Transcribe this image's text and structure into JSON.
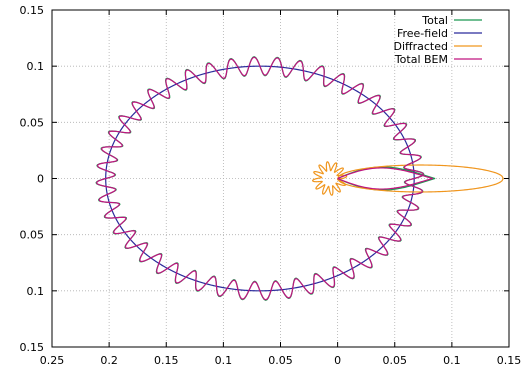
{
  "chart_data": {
    "type": "line",
    "subtype": "polar-directivity",
    "title": "",
    "xlabel": "",
    "ylabel": "",
    "xlim": [
      -0.25,
      0.15
    ],
    "ylim": [
      -0.15,
      0.15
    ],
    "x_ticks": [
      -0.25,
      -0.2,
      -0.15,
      -0.1,
      -0.05,
      0,
      0.05,
      0.1,
      0.15
    ],
    "x_tick_labels": [
      "0.25",
      "0.2",
      "0.15",
      "0.1",
      "0.05",
      "0",
      "0.05",
      "0.1",
      "0.15"
    ],
    "y_ticks": [
      0.15,
      0.1,
      0.05,
      0,
      -0.05,
      -0.1,
      -0.15
    ],
    "y_tick_labels": [
      "0.15",
      "0.1",
      "0.05",
      "0",
      "0.05",
      "0.1",
      "0.15"
    ],
    "grid": true,
    "legend_position": "top-right",
    "series": [
      {
        "name": "Total",
        "color": "#1a9850",
        "description": "base ellipse with ripples, slightly larger amplitude",
        "cx": -0.068,
        "rx": 0.135,
        "ry": 0.1,
        "ripple_amplitude": 0.0085,
        "ripple_count": 44,
        "lobe": {
          "tip_x": 0.085,
          "width": 0.012
        }
      },
      {
        "name": "Free-field",
        "color": "#2b2b9c",
        "description": "smooth ellipse",
        "cx": -0.068,
        "rx": 0.135,
        "ry": 0.1
      },
      {
        "name": "Diffracted",
        "color": "#f0961e",
        "description": "small wavy loop near origin plus narrow forward lobe",
        "small_loop": {
          "cx": -0.007,
          "cy": 0,
          "r": 0.011,
          "ripple_amplitude": 0.004,
          "ripple_count": 12
        },
        "forward_lobe": {
          "x_start": 0.0,
          "x_end": 0.145,
          "half_height": 0.012
        }
      },
      {
        "name": "Total BEM",
        "color": "#c0147f",
        "description": "matches Total with ripples",
        "cx": -0.068,
        "rx": 0.135,
        "ry": 0.1,
        "ripple_amplitude": 0.008,
        "ripple_count": 44,
        "lobe": {
          "tip_x": 0.083,
          "width": 0.011
        }
      }
    ]
  }
}
